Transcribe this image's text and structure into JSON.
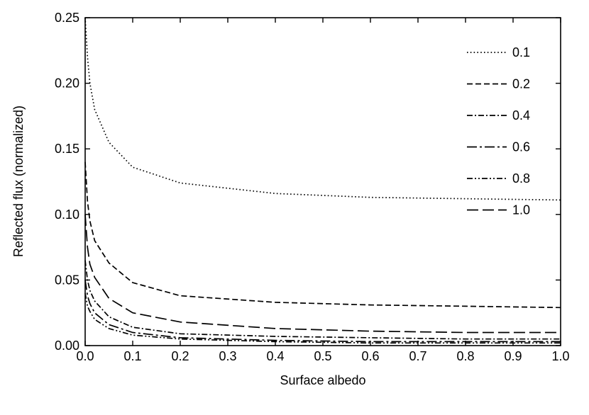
{
  "chart_data": {
    "type": "line",
    "title": "",
    "xlabel": "Surface albedo",
    "ylabel": "Reflected flux (normalized)",
    "xlim": [
      0.0,
      1.0
    ],
    "ylim": [
      0.0,
      0.25
    ],
    "x_ticks": [
      "0.0",
      "0.1",
      "0.2",
      "0.3",
      "0.4",
      "0.5",
      "0.6",
      "0.7",
      "0.8",
      "0.9",
      "1.0"
    ],
    "y_ticks": [
      "0.00",
      "0.05",
      "0.10",
      "0.15",
      "0.20",
      "0.25"
    ],
    "grid": false,
    "legend_position": "top-right",
    "x": [
      0.0,
      0.005,
      0.01,
      0.02,
      0.05,
      0.1,
      0.2,
      0.4,
      0.6,
      0.8,
      1.0
    ],
    "series": [
      {
        "name": "0.1",
        "line_style": "dotted",
        "values": [
          0.25,
          0.22,
          0.2,
          0.18,
          0.155,
          0.136,
          0.124,
          0.116,
          0.113,
          0.112,
          0.111
        ]
      },
      {
        "name": "0.2",
        "line_style": "dashed",
        "values": [
          0.14,
          0.11,
          0.095,
          0.08,
          0.063,
          0.048,
          0.038,
          0.033,
          0.031,
          0.03,
          0.029
        ]
      },
      {
        "name": "0.4",
        "line_style": "dash-dot",
        "values": [
          0.065,
          0.05,
          0.042,
          0.034,
          0.022,
          0.014,
          0.009,
          0.007,
          0.006,
          0.005,
          0.005
        ]
      },
      {
        "name": "0.6",
        "line_style": "long-dash-dot",
        "values": [
          0.05,
          0.038,
          0.032,
          0.025,
          0.016,
          0.01,
          0.006,
          0.004,
          0.003,
          0.003,
          0.003
        ]
      },
      {
        "name": "0.8",
        "line_style": "dash-dot-dot",
        "values": [
          0.04,
          0.03,
          0.026,
          0.02,
          0.013,
          0.008,
          0.005,
          0.003,
          0.002,
          0.002,
          0.002
        ]
      },
      {
        "name": "1.0",
        "line_style": "long-dash",
        "values": [
          0.1,
          0.075,
          0.062,
          0.052,
          0.036,
          0.025,
          0.018,
          0.013,
          0.011,
          0.01,
          0.01
        ]
      }
    ]
  }
}
